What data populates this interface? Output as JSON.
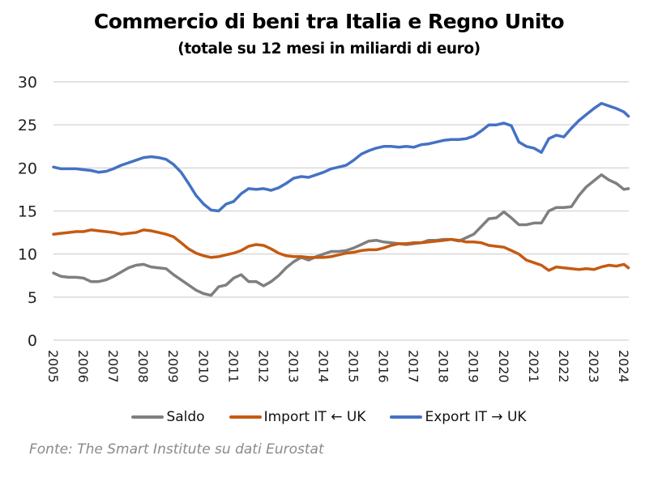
{
  "chart_data": {
    "type": "line",
    "title": "Commercio di beni tra Italia e Regno Unito",
    "subtitle": "(totale su 12 mesi in miliardi di euro)",
    "xlabel": "",
    "ylabel": "",
    "ylim": [
      0,
      30
    ],
    "xlim": [
      2005,
      2024.15
    ],
    "yticks": [
      "0",
      "5",
      "10",
      "15",
      "20",
      "25",
      "30"
    ],
    "ytick_values": [
      0,
      5,
      10,
      15,
      20,
      25,
      30
    ],
    "xticks": [
      "2005",
      "2006",
      "2007",
      "2008",
      "2009",
      "2010",
      "2011",
      "2012",
      "2013",
      "2014",
      "2015",
      "2016",
      "2017",
      "2018",
      "2019",
      "2020",
      "2021",
      "2022",
      "2023",
      "2024"
    ],
    "grid": true,
    "legend_position": "bottom",
    "x": [
      2005.0,
      2005.25,
      2005.5,
      2005.75,
      2006.0,
      2006.25,
      2006.5,
      2006.75,
      2007.0,
      2007.25,
      2007.5,
      2007.75,
      2008.0,
      2008.25,
      2008.5,
      2008.75,
      2009.0,
      2009.25,
      2009.5,
      2009.75,
      2010.0,
      2010.25,
      2010.5,
      2010.75,
      2011.0,
      2011.25,
      2011.5,
      2011.75,
      2012.0,
      2012.25,
      2012.5,
      2012.75,
      2013.0,
      2013.25,
      2013.5,
      2013.75,
      2014.0,
      2014.25,
      2014.5,
      2014.75,
      2015.0,
      2015.25,
      2015.5,
      2015.75,
      2016.0,
      2016.25,
      2016.5,
      2016.75,
      2017.0,
      2017.25,
      2017.5,
      2017.75,
      2018.0,
      2018.25,
      2018.5,
      2018.75,
      2019.0,
      2019.25,
      2019.5,
      2019.75,
      2020.0,
      2020.25,
      2020.5,
      2020.75,
      2021.0,
      2021.25,
      2021.5,
      2021.75,
      2022.0,
      2022.25,
      2022.5,
      2022.75,
      2023.0,
      2023.25,
      2023.5,
      2023.75,
      2024.0,
      2024.15
    ],
    "series": [
      {
        "name": "Saldo",
        "color": "#7f7f7f",
        "values": [
          7.8,
          7.4,
          7.3,
          7.3,
          7.2,
          6.8,
          6.8,
          7.0,
          7.4,
          7.9,
          8.4,
          8.7,
          8.8,
          8.5,
          8.4,
          8.3,
          7.6,
          7.0,
          6.4,
          5.8,
          5.4,
          5.2,
          6.2,
          6.4,
          7.2,
          7.6,
          6.8,
          6.8,
          6.3,
          6.8,
          7.5,
          8.4,
          9.1,
          9.6,
          9.3,
          9.7,
          10.0,
          10.3,
          10.3,
          10.4,
          10.7,
          11.1,
          11.5,
          11.6,
          11.4,
          11.3,
          11.2,
          11.1,
          11.2,
          11.3,
          11.6,
          11.6,
          11.7,
          11.7,
          11.5,
          11.9,
          12.3,
          13.2,
          14.1,
          14.2,
          14.9,
          14.2,
          13.4,
          13.4,
          13.6,
          13.6,
          15.0,
          15.4,
          15.4,
          15.5,
          16.8,
          17.8,
          18.5,
          19.2,
          18.6,
          18.2,
          17.5,
          17.6
        ]
      },
      {
        "name": "Import IT ← UK",
        "color": "#c55a11",
        "values": [
          12.3,
          12.4,
          12.5,
          12.6,
          12.6,
          12.8,
          12.7,
          12.6,
          12.5,
          12.3,
          12.4,
          12.5,
          12.8,
          12.7,
          12.5,
          12.3,
          12.0,
          11.3,
          10.6,
          10.1,
          9.8,
          9.6,
          9.7,
          9.9,
          10.1,
          10.4,
          10.9,
          11.1,
          11.0,
          10.6,
          10.1,
          9.8,
          9.7,
          9.7,
          9.6,
          9.6,
          9.6,
          9.7,
          9.9,
          10.1,
          10.2,
          10.4,
          10.5,
          10.5,
          10.7,
          11.0,
          11.2,
          11.2,
          11.3,
          11.3,
          11.4,
          11.5,
          11.6,
          11.7,
          11.6,
          11.4,
          11.4,
          11.3,
          11.0,
          10.9,
          10.8,
          10.4,
          10.0,
          9.3,
          9.0,
          8.7,
          8.1,
          8.5,
          8.4,
          8.3,
          8.2,
          8.3,
          8.2,
          8.5,
          8.7,
          8.6,
          8.8,
          8.4
        ]
      },
      {
        "name": "Export IT → UK",
        "color": "#4472c4",
        "values": [
          20.1,
          19.9,
          19.9,
          19.9,
          19.8,
          19.7,
          19.5,
          19.6,
          19.9,
          20.3,
          20.6,
          20.9,
          21.2,
          21.3,
          21.2,
          21.0,
          20.4,
          19.5,
          18.2,
          16.8,
          15.8,
          15.1,
          15.0,
          15.8,
          16.1,
          17.0,
          17.6,
          17.5,
          17.6,
          17.4,
          17.7,
          18.2,
          18.8,
          19.0,
          18.9,
          19.2,
          19.5,
          19.9,
          20.1,
          20.3,
          20.9,
          21.6,
          22.0,
          22.3,
          22.5,
          22.5,
          22.4,
          22.5,
          22.4,
          22.7,
          22.8,
          23.0,
          23.2,
          23.3,
          23.3,
          23.4,
          23.7,
          24.3,
          25.0,
          25.0,
          25.2,
          24.9,
          23.0,
          22.5,
          22.3,
          21.8,
          23.4,
          23.8,
          23.6,
          24.6,
          25.5,
          26.2,
          26.9,
          27.5,
          27.2,
          26.9,
          26.5,
          26.0
        ]
      }
    ],
    "source": "Fonte: The Smart Institute su dati Eurostat"
  }
}
